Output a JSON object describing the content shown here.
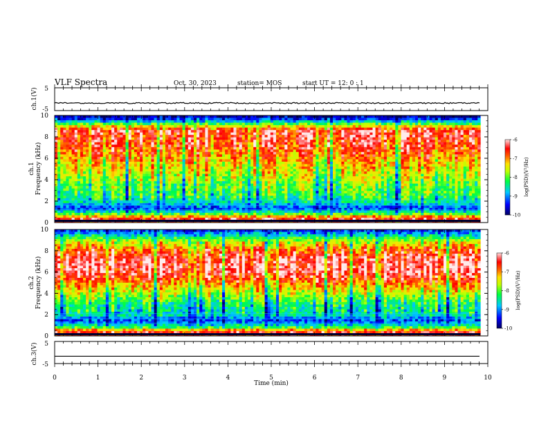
{
  "header": {
    "title": "VLF Spectra",
    "date": "Oct. 30, 2023",
    "station": "station= MOS",
    "start": "start  UT =   12: 0   : 1"
  },
  "colors": {
    "colormap": [
      "#000080",
      "#0000ff",
      "#00ffff",
      "#00ff00",
      "#ffff00",
      "#ff8000",
      "#ff0000",
      "#ffffff"
    ],
    "waveform": "#000000"
  },
  "chart_data": [
    {
      "type": "line",
      "ylabel": "ch.1(V)",
      "ylim": [
        -5,
        5
      ],
      "yticks": [
        "5",
        "-5"
      ],
      "xlim": [
        0,
        10
      ],
      "level": -1.7,
      "note_noise": "small fluctuations about baseline"
    },
    {
      "type": "heatmap",
      "ylabel": "ch.1\nFrequency (kHz)",
      "ylabel_line1": "ch.1",
      "ylabel_line2": "Frequency (kHz)",
      "ylim": [
        0,
        10
      ],
      "yticks": [
        "0",
        "2",
        "4",
        "6",
        "8",
        "10"
      ],
      "xlim": [
        0,
        10
      ],
      "data_end_min": 9.83,
      "colorbar": {
        "label": "log(PSD)(V²/Hz)",
        "ticks": [
          "-6",
          "-7",
          "-8",
          "-9",
          "-10"
        ],
        "range": [
          -10,
          -6
        ]
      },
      "profile_khz": [
        [
          0,
          -6.8
        ],
        [
          0.4,
          -6.4
        ],
        [
          0.8,
          -8.0
        ],
        [
          1.3,
          -9.3
        ],
        [
          1.8,
          -8.6
        ],
        [
          2.5,
          -8.1
        ],
        [
          3.5,
          -7.9
        ],
        [
          4.5,
          -7.5
        ],
        [
          5.5,
          -7.2
        ],
        [
          6.5,
          -6.8
        ],
        [
          7.5,
          -6.5
        ],
        [
          8.6,
          -6.3
        ],
        [
          9.0,
          -7.4
        ],
        [
          9.4,
          -8.6
        ],
        [
          9.7,
          -9.4
        ],
        [
          10.0,
          -9.8
        ]
      ]
    },
    {
      "type": "heatmap",
      "ylabel_line1": "ch.2",
      "ylabel_line2": "Frequency (kHz)",
      "ylim": [
        0,
        10
      ],
      "yticks": [
        "0",
        "2",
        "4",
        "6",
        "8",
        "10"
      ],
      "xlim": [
        0,
        10
      ],
      "data_end_min": 9.83,
      "colorbar": {
        "label": "log(PSD)(V²/Hz)",
        "ticks": [
          "-6",
          "-7",
          "-8",
          "-9",
          "-10"
        ],
        "range": [
          -10,
          -6
        ]
      },
      "profile_khz": [
        [
          0,
          -6.8
        ],
        [
          0.4,
          -6.4
        ],
        [
          0.8,
          -8.1
        ],
        [
          1.4,
          -9.3
        ],
        [
          2.0,
          -8.5
        ],
        [
          3.0,
          -8.3
        ],
        [
          4.0,
          -7.6
        ],
        [
          5.0,
          -6.9
        ],
        [
          6.0,
          -6.2
        ],
        [
          7.0,
          -6.2
        ],
        [
          8.0,
          -6.7
        ],
        [
          8.8,
          -7.5
        ],
        [
          9.3,
          -8.3
        ],
        [
          9.7,
          -9.0
        ],
        [
          10.0,
          -9.5
        ]
      ]
    },
    {
      "type": "line",
      "ylabel": "ch.3(V)",
      "ylim": [
        -5,
        5
      ],
      "yticks": [
        "5",
        "-5"
      ],
      "xlim": [
        0,
        10
      ],
      "level": -1.7,
      "xlabel": "Time  (min)",
      "xticks": [
        "0",
        "1",
        "2",
        "3",
        "4",
        "5",
        "6",
        "7",
        "8",
        "9",
        "10"
      ]
    }
  ]
}
